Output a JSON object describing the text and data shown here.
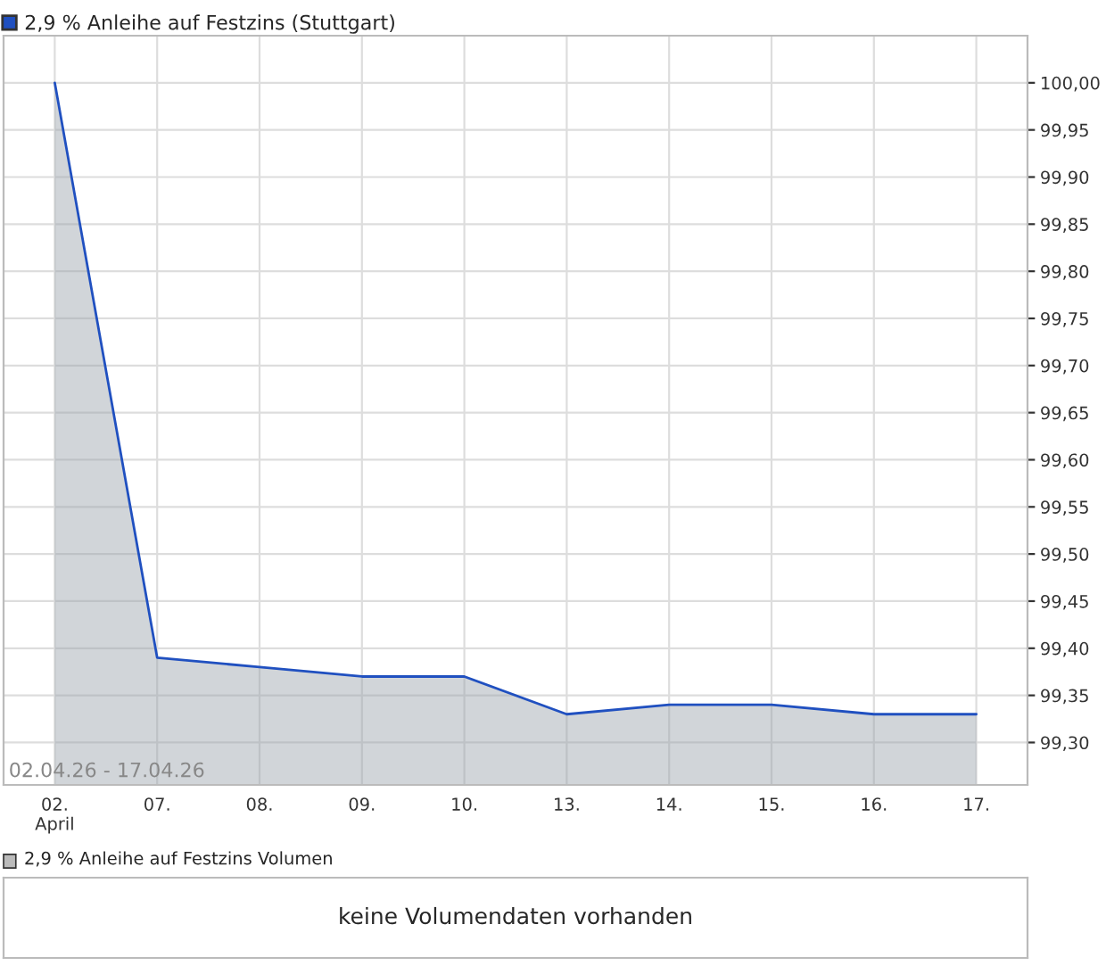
{
  "chart_data": [
    {
      "type": "area",
      "categories": [
        "02.\nApril",
        "07.",
        "08.",
        "09.",
        "10.",
        "13.",
        "14.",
        "15.",
        "16.",
        "17."
      ],
      "series": [
        {
          "name": "2,9 % Anleihe auf Festzins (Stuttgart)",
          "color": "#2050c0",
          "values": [
            100.0,
            99.39,
            99.38,
            99.37,
            99.37,
            99.33,
            99.34,
            99.34,
            99.33,
            99.33
          ]
        }
      ],
      "ylim": [
        99.255,
        100.05
      ],
      "yticks": [
        {
          "value": 99.3,
          "label": "99,30"
        },
        {
          "value": 99.35,
          "label": "99,35"
        },
        {
          "value": 99.4,
          "label": "99,40"
        },
        {
          "value": 99.45,
          "label": "99,45"
        },
        {
          "value": 99.5,
          "label": "99,50"
        },
        {
          "value": 99.55,
          "label": "99,55"
        },
        {
          "value": 99.6,
          "label": "99,60"
        },
        {
          "value": 99.65,
          "label": "99,65"
        },
        {
          "value": 99.7,
          "label": "99,70"
        },
        {
          "value": 99.75,
          "label": "99,75"
        },
        {
          "value": 99.8,
          "label": "99,80"
        },
        {
          "value": 99.85,
          "label": "99,85"
        },
        {
          "value": 99.9,
          "label": "99,90"
        },
        {
          "value": 99.95,
          "label": "99,95"
        },
        {
          "value": 100.0,
          "label": "100,00"
        }
      ],
      "grid": true,
      "legend": "top left",
      "annotations": [
        "02.04.26 - 17.04.26"
      ]
    },
    {
      "type": "other",
      "title": "2,9 % Anleihe auf Festzins Volumen",
      "annotations": [
        "keine Volumendaten vorhanden"
      ]
    }
  ]
}
